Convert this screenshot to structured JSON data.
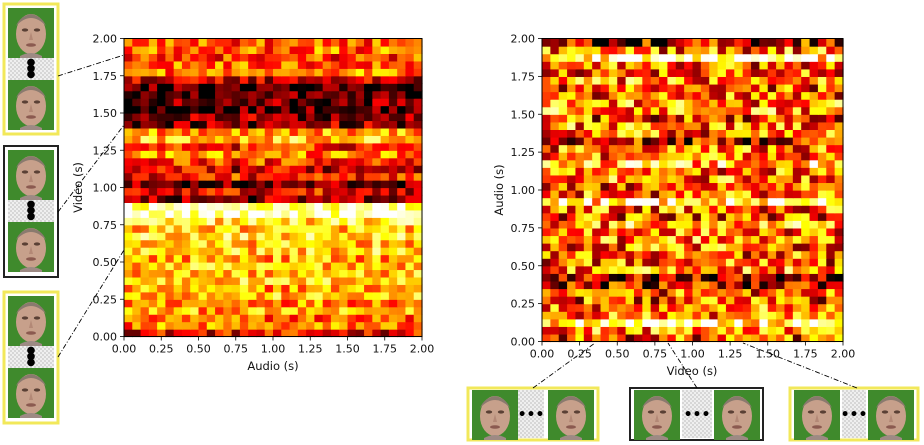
{
  "chart_data": [
    {
      "type": "heatmap",
      "xlabel": "Audio (s)",
      "ylabel": "Video (s)",
      "xlim": [
        0,
        2
      ],
      "ylim": [
        0,
        2
      ],
      "x_ticks": [
        "0.00",
        "0.25",
        "0.50",
        "0.75",
        "1.00",
        "1.25",
        "1.50",
        "1.75",
        "2.00"
      ],
      "y_ticks": [
        "0.00",
        "0.25",
        "0.50",
        "0.75",
        "1.00",
        "1.25",
        "1.50",
        "1.75",
        "2.00"
      ],
      "colormap": "hot",
      "grid": false,
      "rows_from_bottom": [
        0.35,
        0.55,
        0.5,
        0.62,
        0.58,
        0.66,
        0.6,
        0.7,
        0.65,
        0.68,
        0.62,
        0.7,
        0.66,
        0.72,
        0.68,
        0.74,
        0.95,
        0.9,
        0.2,
        0.35,
        0.15,
        0.4,
        0.3,
        0.45,
        0.55,
        0.4,
        0.7,
        0.6,
        0.22,
        0.2,
        0.1,
        0.15,
        0.12,
        0.08,
        0.3,
        0.55,
        0.5,
        0.45,
        0.52,
        0.48
      ]
    },
    {
      "type": "heatmap",
      "xlabel": "Video (s)",
      "ylabel": "Audio (s)",
      "xlim": [
        0,
        2
      ],
      "ylim": [
        0,
        2
      ],
      "x_ticks": [
        "0.00",
        "0.25",
        "0.50",
        "0.75",
        "1.00",
        "1.25",
        "1.50",
        "1.75",
        "2.00"
      ],
      "y_ticks": [
        "0.00",
        "0.25",
        "0.50",
        "0.75",
        "1.00",
        "1.25",
        "1.50",
        "1.75",
        "2.00"
      ],
      "colormap": "hot",
      "grid": false,
      "rows_from_bottom": [
        0.45,
        0.55,
        0.85,
        0.5,
        0.55,
        0.45,
        0.5,
        0.3,
        0.2,
        0.55,
        0.5,
        0.48,
        0.52,
        0.55,
        0.5,
        0.6,
        0.45,
        0.52,
        0.75,
        0.5,
        0.48,
        0.55,
        0.5,
        0.7,
        0.55,
        0.52,
        0.3,
        0.5,
        0.55,
        0.45,
        0.6,
        0.55,
        0.5,
        0.48,
        0.55,
        0.5,
        0.48,
        0.85,
        0.52,
        0.3
      ]
    }
  ]
}
